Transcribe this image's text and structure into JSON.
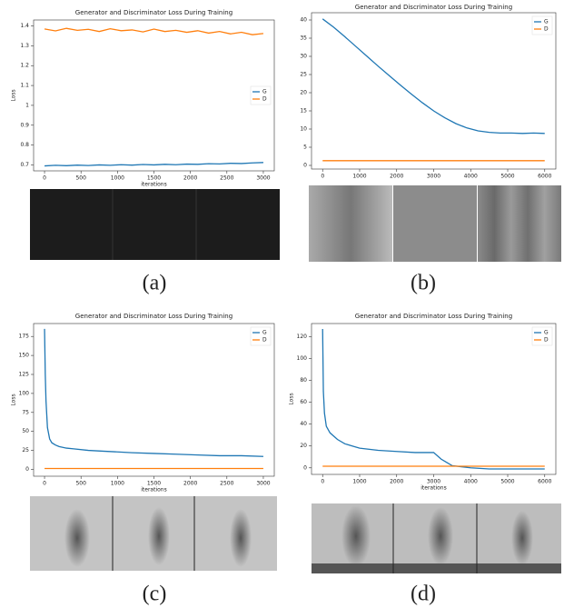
{
  "chart_data": [
    {
      "type": "line",
      "title": "Generator and Discriminator Loss During Training",
      "x_label": "iterations",
      "y_label": "Loss",
      "caption": "(a)",
      "x": [
        0,
        150,
        300,
        450,
        600,
        750,
        900,
        1050,
        1200,
        1350,
        1500,
        1650,
        1800,
        1950,
        2100,
        2250,
        2400,
        2550,
        2700,
        2850,
        3000
      ],
      "series": [
        {
          "name": "G",
          "color": "#1f77b4",
          "values": [
            0.695,
            0.698,
            0.696,
            0.699,
            0.697,
            0.7,
            0.698,
            0.701,
            0.699,
            0.702,
            0.7,
            0.703,
            0.701,
            0.704,
            0.703,
            0.706,
            0.705,
            0.708,
            0.707,
            0.71,
            0.712
          ]
        },
        {
          "name": "D",
          "color": "#ff7f0e",
          "values": [
            1.385,
            1.375,
            1.388,
            1.378,
            1.383,
            1.372,
            1.386,
            1.376,
            1.38,
            1.37,
            1.384,
            1.372,
            1.378,
            1.368,
            1.376,
            1.364,
            1.372,
            1.36,
            1.368,
            1.356,
            1.362
          ]
        }
      ],
      "xlim": [
        -150,
        3150
      ],
      "xticks": [
        0,
        500,
        1000,
        1500,
        2000,
        2500,
        3000
      ],
      "ylim": [
        0.67,
        1.43
      ],
      "yticks": [
        0.7,
        0.8,
        0.9,
        1.0,
        1.1,
        1.2,
        1.3,
        1.4
      ],
      "legend": "center right"
    },
    {
      "type": "line",
      "title": "Generator and Discriminator Loss During Training",
      "caption": "(b)",
      "x": [
        0,
        300,
        600,
        900,
        1200,
        1500,
        1800,
        2100,
        2400,
        2700,
        3000,
        3300,
        3600,
        3900,
        4200,
        4500,
        4800,
        5100,
        5400,
        5700,
        6000
      ],
      "series": [
        {
          "name": "G",
          "color": "#1f77b4",
          "values": [
            40.3,
            38,
            35.4,
            32.7,
            30,
            27.3,
            24.7,
            22.1,
            19.6,
            17.2,
            15,
            13.1,
            11.5,
            10.3,
            9.5,
            9.1,
            8.9,
            8.9,
            8.8,
            8.9,
            8.8
          ]
        },
        {
          "name": "D",
          "color": "#ff7f0e",
          "values": [
            1.3,
            1.3,
            1.3,
            1.3,
            1.3,
            1.3,
            1.3,
            1.3,
            1.3,
            1.3,
            1.3,
            1.3,
            1.3,
            1.3,
            1.3,
            1.3,
            1.3,
            1.3,
            1.3,
            1.3,
            1.3
          ]
        }
      ],
      "xlim": [
        -300,
        6300
      ],
      "xticks": [
        0,
        1000,
        2000,
        3000,
        4000,
        5000,
        6000
      ],
      "ylim": [
        -1,
        42
      ],
      "yticks": [
        0,
        5,
        10,
        15,
        20,
        25,
        30,
        35,
        40
      ],
      "legend": "upper right"
    },
    {
      "type": "line",
      "title": "Generator and Discriminator Loss During Training",
      "x_label": "iterations",
      "y_label": "Loss",
      "caption": "(c)",
      "x": [
        0,
        10,
        20,
        40,
        70,
        100,
        150,
        200,
        300,
        400,
        600,
        800,
        1000,
        1200,
        1500,
        1800,
        2100,
        2400,
        2700,
        3000
      ],
      "series": [
        {
          "name": "G",
          "color": "#1f77b4",
          "values": [
            185,
            125,
            90,
            55,
            40,
            35,
            32,
            30,
            28,
            27,
            25,
            24,
            23,
            22,
            21,
            20,
            19,
            18,
            18,
            17
          ]
        },
        {
          "name": "D",
          "color": "#ff7f0e",
          "values": [
            1.2,
            1.2,
            1.2,
            1.2,
            1.2,
            1.2,
            1.2,
            1.2,
            1.2,
            1.2,
            1.2,
            1.2,
            1.2,
            1.2,
            1.2,
            1.2,
            1.2,
            1.2,
            1.2,
            1.2
          ]
        }
      ],
      "xlim": [
        -150,
        3150
      ],
      "xticks": [
        0,
        500,
        1000,
        1500,
        2000,
        2500,
        3000
      ],
      "ylim": [
        -9,
        192
      ],
      "yticks": [
        0,
        25,
        50,
        75,
        100,
        125,
        150,
        175
      ],
      "legend": "upper right"
    },
    {
      "type": "line",
      "title": "Generator and Discriminator Loss During Training",
      "x_label": "iterations",
      "y_label": "Loss",
      "caption": "(d)",
      "x": [
        0,
        20,
        50,
        100,
        200,
        400,
        600,
        800,
        1000,
        1500,
        2000,
        2500,
        3000,
        3200,
        3500,
        4000,
        4500,
        5000,
        5500,
        6000
      ],
      "series": [
        {
          "name": "G",
          "color": "#1f77b4",
          "values": [
            127,
            70,
            50,
            38,
            32,
            26,
            22,
            20,
            18,
            16,
            15,
            14,
            14,
            8,
            2,
            0,
            -1,
            -1,
            -1,
            -1
          ]
        },
        {
          "name": "D",
          "color": "#ff7f0e",
          "values": [
            1.5,
            1.5,
            1.5,
            1.5,
            1.5,
            1.5,
            1.5,
            1.5,
            1.5,
            1.5,
            1.5,
            1.5,
            1.5,
            1.5,
            1.5,
            1.5,
            1.5,
            1.5,
            1.5,
            1.5
          ]
        }
      ],
      "xlim": [
        -300,
        6300
      ],
      "xticks": [
        0,
        1000,
        2000,
        3000,
        4000,
        5000,
        6000
      ],
      "ylim": [
        -6,
        132
      ],
      "yticks": [
        0,
        20,
        40,
        60,
        80,
        100,
        120
      ],
      "legend": "upper right"
    }
  ]
}
